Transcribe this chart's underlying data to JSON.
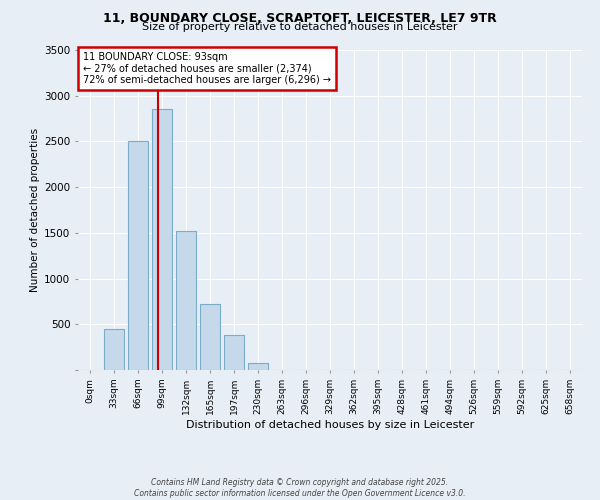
{
  "title1": "11, BOUNDARY CLOSE, SCRAPTOFT, LEICESTER, LE7 9TR",
  "title2": "Size of property relative to detached houses in Leicester",
  "xlabel": "Distribution of detached houses by size in Leicester",
  "ylabel": "Number of detached properties",
  "bar_color": "#c5d9ea",
  "bar_edge_color": "#7aaec8",
  "categories": [
    "0sqm",
    "33sqm",
    "66sqm",
    "99sqm",
    "132sqm",
    "165sqm",
    "197sqm",
    "230sqm",
    "263sqm",
    "296sqm",
    "329sqm",
    "362sqm",
    "395sqm",
    "428sqm",
    "461sqm",
    "494sqm",
    "526sqm",
    "559sqm",
    "592sqm",
    "625sqm",
    "658sqm"
  ],
  "values": [
    0,
    450,
    2500,
    2850,
    1520,
    720,
    380,
    80,
    0,
    0,
    0,
    0,
    0,
    0,
    0,
    0,
    0,
    0,
    0,
    0,
    0
  ],
  "ylim": [
    0,
    3500
  ],
  "yticks": [
    0,
    500,
    1000,
    1500,
    2000,
    2500,
    3000,
    3500
  ],
  "annotation_line1": "11 BOUNDARY CLOSE: 93sqm",
  "annotation_line2": "← 27% of detached houses are smaller (2,374)",
  "annotation_line3": "72% of semi-detached houses are larger (6,296) →",
  "red_line_color": "#cc0000",
  "annotation_box_color": "#ffffff",
  "annotation_box_edge": "#cc0000",
  "bg_color": "#e8eef5",
  "grid_color": "#ffffff",
  "footnote1": "Contains HM Land Registry data © Crown copyright and database right 2025.",
  "footnote2": "Contains public sector information licensed under the Open Government Licence v3.0."
}
